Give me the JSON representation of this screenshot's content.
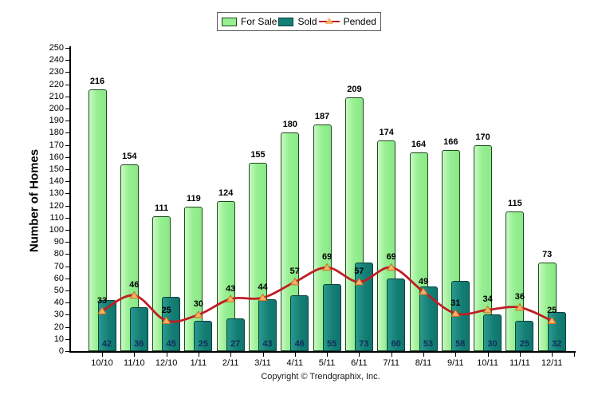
{
  "legend": {
    "items": [
      {
        "label": "For Sale",
        "type": "box",
        "color": "#97ef92",
        "border": "#1c4a1c"
      },
      {
        "label": "Sold",
        "type": "box",
        "color": "#147f76",
        "border": "#07413d"
      },
      {
        "label": "Pended",
        "type": "line-marker",
        "color": "#bf1e24",
        "marker": "#f9b26a",
        "marker_border": "#cb6d21"
      }
    ]
  },
  "chart_data": {
    "type": "bar",
    "title": "",
    "xlabel": "",
    "ylabel": "Number of Homes",
    "ylim": [
      0,
      250
    ],
    "ytick_step": 10,
    "grid": false,
    "legend_position": "top",
    "categories": [
      "10/10",
      "11/10",
      "12/10",
      "1/11",
      "2/11",
      "3/11",
      "4/11",
      "5/11",
      "6/11",
      "7/11",
      "8/11",
      "9/11",
      "10/11",
      "11/11",
      "12/11"
    ],
    "series": [
      {
        "name": "For Sale",
        "type": "bar",
        "color": "#97ef92",
        "values": [
          216,
          154,
          111,
          119,
          124,
          155,
          180,
          187,
          209,
          174,
          164,
          166,
          170,
          115,
          73
        ]
      },
      {
        "name": "Sold",
        "type": "bar",
        "color": "#147f76",
        "values": [
          42,
          36,
          45,
          25,
          27,
          43,
          46,
          55,
          73,
          60,
          53,
          58,
          30,
          25,
          32
        ]
      },
      {
        "name": "Pended",
        "type": "line",
        "color": "#bf1e24",
        "marker_color": "#f9b26a",
        "values": [
          33,
          46,
          25,
          30,
          43,
          44,
          57,
          69,
          57,
          69,
          49,
          31,
          34,
          36,
          25
        ]
      }
    ]
  },
  "footer": {
    "copyright": "Copyright © Trendgraphix, Inc."
  }
}
